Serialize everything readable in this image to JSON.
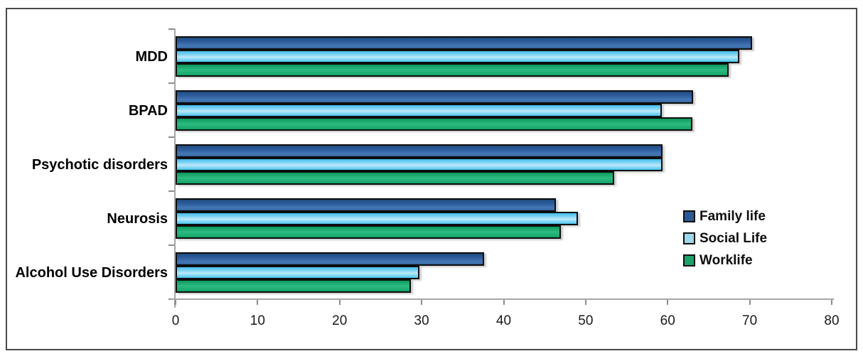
{
  "figure": {
    "background": "#ffffff",
    "frame_border_color": "#4a4a4a",
    "axis_color": "#a6a6a6"
  },
  "chart_data": {
    "type": "bar",
    "orientation": "horizontal",
    "title": "",
    "xlabel": "",
    "ylabel": "",
    "grid": false,
    "legend_position": "middle-right",
    "xlim": [
      0,
      80
    ],
    "xticks": [
      0,
      10,
      20,
      30,
      40,
      50,
      60,
      70,
      80
    ],
    "categories": [
      "MDD",
      "BPAD",
      "Psychotic disorders",
      "Neurosis",
      "Alcohol Use Disorders"
    ],
    "series": [
      {
        "name": "Family life",
        "color": "#2e5e9e",
        "values": [
          70.3,
          63.1,
          59.4,
          46.4,
          37.6
        ]
      },
      {
        "name": "Social Life",
        "color": "#9fdef7",
        "values": [
          68.7,
          59.3,
          59.4,
          49.1,
          29.7
        ]
      },
      {
        "name": "Worklife",
        "color": "#17a56c",
        "values": [
          67.4,
          63.0,
          53.5,
          47.0,
          28.7
        ]
      }
    ]
  }
}
